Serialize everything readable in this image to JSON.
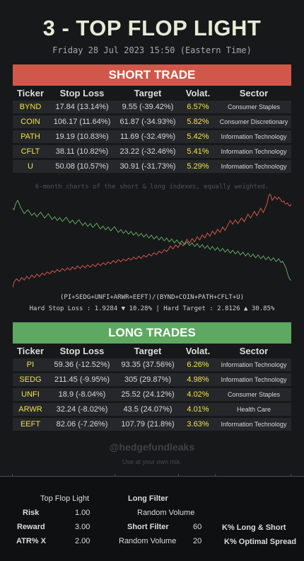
{
  "header": {
    "title": "3 - TOP FLOP LIGHT",
    "subtitle": "Friday 28 Jul 2023 15:50 (Eastern Time)"
  },
  "columns": [
    "Ticker",
    "Stop Loss",
    "Target",
    "Volat.",
    "Sector"
  ],
  "short_trade": {
    "banner": "SHORT TRADE",
    "rows": [
      {
        "ticker": "BYND",
        "stop_loss": "17.84 (13.14%)",
        "target": "9.55 (-39.42%)",
        "volat": "6.57%",
        "sector": "Consumer Staples"
      },
      {
        "ticker": "COIN",
        "stop_loss": "106.17 (11.64%)",
        "target": "61.87 (-34.93%)",
        "volat": "5.82%",
        "sector": "Consumer Discretionary"
      },
      {
        "ticker": "PATH",
        "stop_loss": "19.19 (10.83%)",
        "target": "11.69 (-32.49%)",
        "volat": "5.42%",
        "sector": "Information Technology"
      },
      {
        "ticker": "CFLT",
        "stop_loss": "38.11 (10.82%)",
        "target": "23.22 (-32.46%)",
        "volat": "5.41%",
        "sector": "Information Technology"
      },
      {
        "ticker": "U",
        "stop_loss": "50.08 (10.57%)",
        "target": "30.91 (-31.73%)",
        "volat": "5.29%",
        "sector": "Information Technology"
      }
    ]
  },
  "chart": {
    "caption": "6-month charts of the short & long indexes, equally weighted.",
    "formula": "(PI+SEDG+UNFI+ARWR+EEFT)/(BYND+COIN+PATH+CFLT+U)",
    "hard_line": "Hard Stop Loss : 1.9284 ▼ 10.28% | Hard Target : 2.8126 ▲ 30.85%"
  },
  "chart_data": {
    "type": "line",
    "title": "",
    "xlabel": "",
    "ylabel": "",
    "grid": false,
    "series": [
      {
        "color": "#d0584a",
        "values": [
          0.52,
          0.68,
          0.75,
          0.8,
          0.76,
          0.72,
          0.78,
          0.84,
          0.8,
          0.76,
          0.81,
          0.88,
          0.83,
          0.8,
          0.86,
          0.92,
          0.88,
          0.84,
          0.89,
          0.95,
          0.91,
          0.87,
          0.92,
          0.98,
          0.95,
          0.92,
          0.97,
          1.02,
          0.99,
          0.96,
          1.0,
          1.06,
          1.03,
          1.0,
          1.05,
          1.1,
          1.06,
          1.03,
          1.08,
          1.13,
          1.09,
          1.06,
          1.1,
          1.15,
          1.12,
          1.08,
          1.13,
          1.18,
          1.14,
          1.11,
          1.16,
          1.21,
          1.17,
          1.13,
          1.18,
          1.22,
          1.19,
          1.15,
          1.2,
          1.24,
          1.2,
          1.17,
          1.21,
          1.26,
          1.22,
          1.19,
          1.24,
          1.29,
          1.25,
          1.22,
          1.26,
          1.31,
          1.28,
          1.25,
          1.29,
          1.34,
          1.31,
          1.28,
          1.33,
          1.38,
          1.35,
          1.31,
          1.36,
          1.41,
          1.38,
          1.34,
          1.38,
          1.43,
          1.4,
          1.37,
          1.41,
          1.46,
          1.43,
          1.4,
          1.44,
          1.49,
          1.46,
          1.43,
          1.47,
          1.52,
          1.48,
          1.45,
          1.5,
          1.55,
          1.52,
          1.49,
          1.54,
          1.59,
          1.56,
          1.53,
          1.58,
          1.63,
          1.6,
          1.57,
          1.62,
          1.68,
          1.65,
          1.62,
          1.67,
          1.73,
          1.7,
          1.67,
          1.72,
          1.78,
          1.84,
          1.79,
          1.75,
          1.81,
          1.88,
          1.84,
          1.8,
          1.86,
          1.93,
          1.89,
          1.85,
          1.92,
          1.99,
          2.06,
          2.0,
          1.94,
          2.01,
          2.08,
          2.03,
          1.98,
          2.06,
          2.14,
          2.09,
          2.04,
          2.12,
          2.2,
          2.15,
          2.1,
          2.18,
          2.26,
          2.21,
          2.16,
          2.24,
          2.32,
          2.27,
          2.22,
          2.3,
          2.38,
          2.33,
          2.28,
          2.36,
          2.45,
          2.4,
          2.34,
          2.42,
          2.5,
          2.58,
          2.66,
          2.6,
          2.54,
          2.61,
          2.68,
          2.62,
          2.56,
          2.62,
          2.68,
          2.74,
          2.68,
          2.62,
          2.7,
          2.78,
          2.86,
          2.8,
          2.74,
          2.81,
          2.88,
          2.95,
          2.88,
          2.81,
          2.89,
          2.97,
          3.05,
          2.98,
          2.91,
          3.0,
          3.1,
          3.2,
          3.4,
          3.5,
          3.45,
          3.3,
          3.35,
          3.42,
          3.38,
          3.33,
          3.4,
          3.36,
          3.3,
          3.25,
          3.28,
          3.2,
          3.18,
          3.22,
          3.15,
          3.12,
          3.18
        ]
      },
      {
        "color": "#5fa862",
        "values": [
          3.05,
          3.0,
          3.15,
          3.25,
          3.3,
          3.2,
          3.1,
          3.02,
          2.95,
          2.88,
          2.92,
          2.96,
          3.0,
          2.94,
          2.88,
          2.82,
          2.86,
          2.9,
          2.84,
          2.78,
          2.83,
          2.88,
          2.92,
          2.86,
          2.8,
          2.74,
          2.78,
          2.83,
          2.87,
          2.81,
          2.75,
          2.69,
          2.74,
          2.78,
          2.72,
          2.66,
          2.7,
          2.75,
          2.69,
          2.63,
          2.67,
          2.72,
          2.76,
          2.7,
          2.64,
          2.58,
          2.63,
          2.67,
          2.61,
          2.55,
          2.59,
          2.64,
          2.68,
          2.62,
          2.56,
          2.5,
          2.55,
          2.59,
          2.53,
          2.47,
          2.51,
          2.56,
          2.5,
          2.44,
          2.48,
          2.53,
          2.57,
          2.51,
          2.45,
          2.39,
          2.43,
          2.48,
          2.42,
          2.36,
          2.4,
          2.45,
          2.39,
          2.33,
          2.37,
          2.42,
          2.46,
          2.4,
          2.34,
          2.28,
          2.32,
          2.37,
          2.31,
          2.25,
          2.29,
          2.34,
          2.28,
          2.22,
          2.26,
          2.31,
          2.25,
          2.19,
          2.23,
          2.28,
          2.22,
          2.16,
          2.2,
          2.25,
          2.19,
          2.13,
          2.17,
          2.22,
          2.16,
          2.1,
          2.14,
          2.19,
          2.13,
          2.07,
          2.11,
          2.16,
          2.1,
          2.04,
          2.08,
          2.13,
          2.07,
          2.01,
          2.05,
          2.1,
          2.04,
          1.98,
          2.02,
          2.07,
          2.01,
          1.95,
          1.99,
          2.04,
          1.98,
          1.92,
          1.96,
          2.01,
          1.95,
          1.89,
          1.93,
          1.98,
          1.92,
          1.86,
          1.9,
          1.95,
          1.89,
          1.83,
          1.87,
          1.92,
          1.86,
          1.8,
          1.84,
          1.89,
          1.83,
          1.77,
          1.81,
          1.86,
          1.8,
          1.74,
          1.78,
          1.83,
          1.77,
          1.71,
          1.75,
          1.8,
          1.74,
          1.68,
          1.72,
          1.77,
          1.71,
          1.65,
          1.69,
          1.74,
          1.68,
          1.62,
          1.66,
          1.71,
          1.65,
          1.59,
          1.63,
          1.68,
          1.62,
          1.56,
          1.6,
          1.65,
          1.59,
          1.53,
          1.57,
          1.62,
          1.56,
          1.5,
          1.54,
          1.59,
          1.53,
          1.47,
          1.51,
          1.56,
          1.5,
          1.44,
          1.48,
          1.53,
          1.47,
          1.41,
          1.45,
          1.5,
          1.44,
          1.38,
          1.42,
          1.47,
          1.41,
          1.35,
          1.39,
          1.44,
          1.38,
          1.32,
          1.36,
          1.3,
          1.22,
          1.12,
          0.98,
          0.85,
          0.78,
          0.75
        ]
      }
    ]
  },
  "long_trades": {
    "banner": "LONG TRADES",
    "rows": [
      {
        "ticker": "PI",
        "stop_loss": "59.36 (-12.52%)",
        "target": "93.35 (37.56%)",
        "volat": "6.26%",
        "sector": "Information Technology"
      },
      {
        "ticker": "SEDG",
        "stop_loss": "211.45 (-9.95%)",
        "target": "305 (29.87%)",
        "volat": "4.98%",
        "sector": "Information Technology"
      },
      {
        "ticker": "UNFI",
        "stop_loss": "18.9 (-8.04%)",
        "target": "25.52 (24.12%)",
        "volat": "4.02%",
        "sector": "Consumer Staples"
      },
      {
        "ticker": "ARWR",
        "stop_loss": "32.24 (-8.02%)",
        "target": "43.5 (24.07%)",
        "volat": "4.01%",
        "sector": "Health Care"
      },
      {
        "ticker": "EEFT",
        "stop_loss": "82.06 (-7.26%)",
        "target": "107.79 (21.8%)",
        "volat": "3.63%",
        "sector": "Information Technology"
      }
    ]
  },
  "footer": {
    "handle": "@hedgefundleaks",
    "disclaimer": "Use at your own risk."
  },
  "settings": {
    "top_flop_light": "Top Flop Light",
    "risk_label": "Risk",
    "risk_value": "1.00",
    "reward_label": "Reward",
    "reward_value": "3.00",
    "atr_label": "ATR% X",
    "atr_value": "2.00",
    "long_filter": "Long Filter",
    "random_volume_1": "Random Volume",
    "short_filter": "Short Filter",
    "short_filter_value": "60",
    "random_volume_2": "Random Volume",
    "random_volume_2_value": "20",
    "k_long_short": "K% Long & Short",
    "k_optimal_spread": "K% Optimal Spread"
  }
}
